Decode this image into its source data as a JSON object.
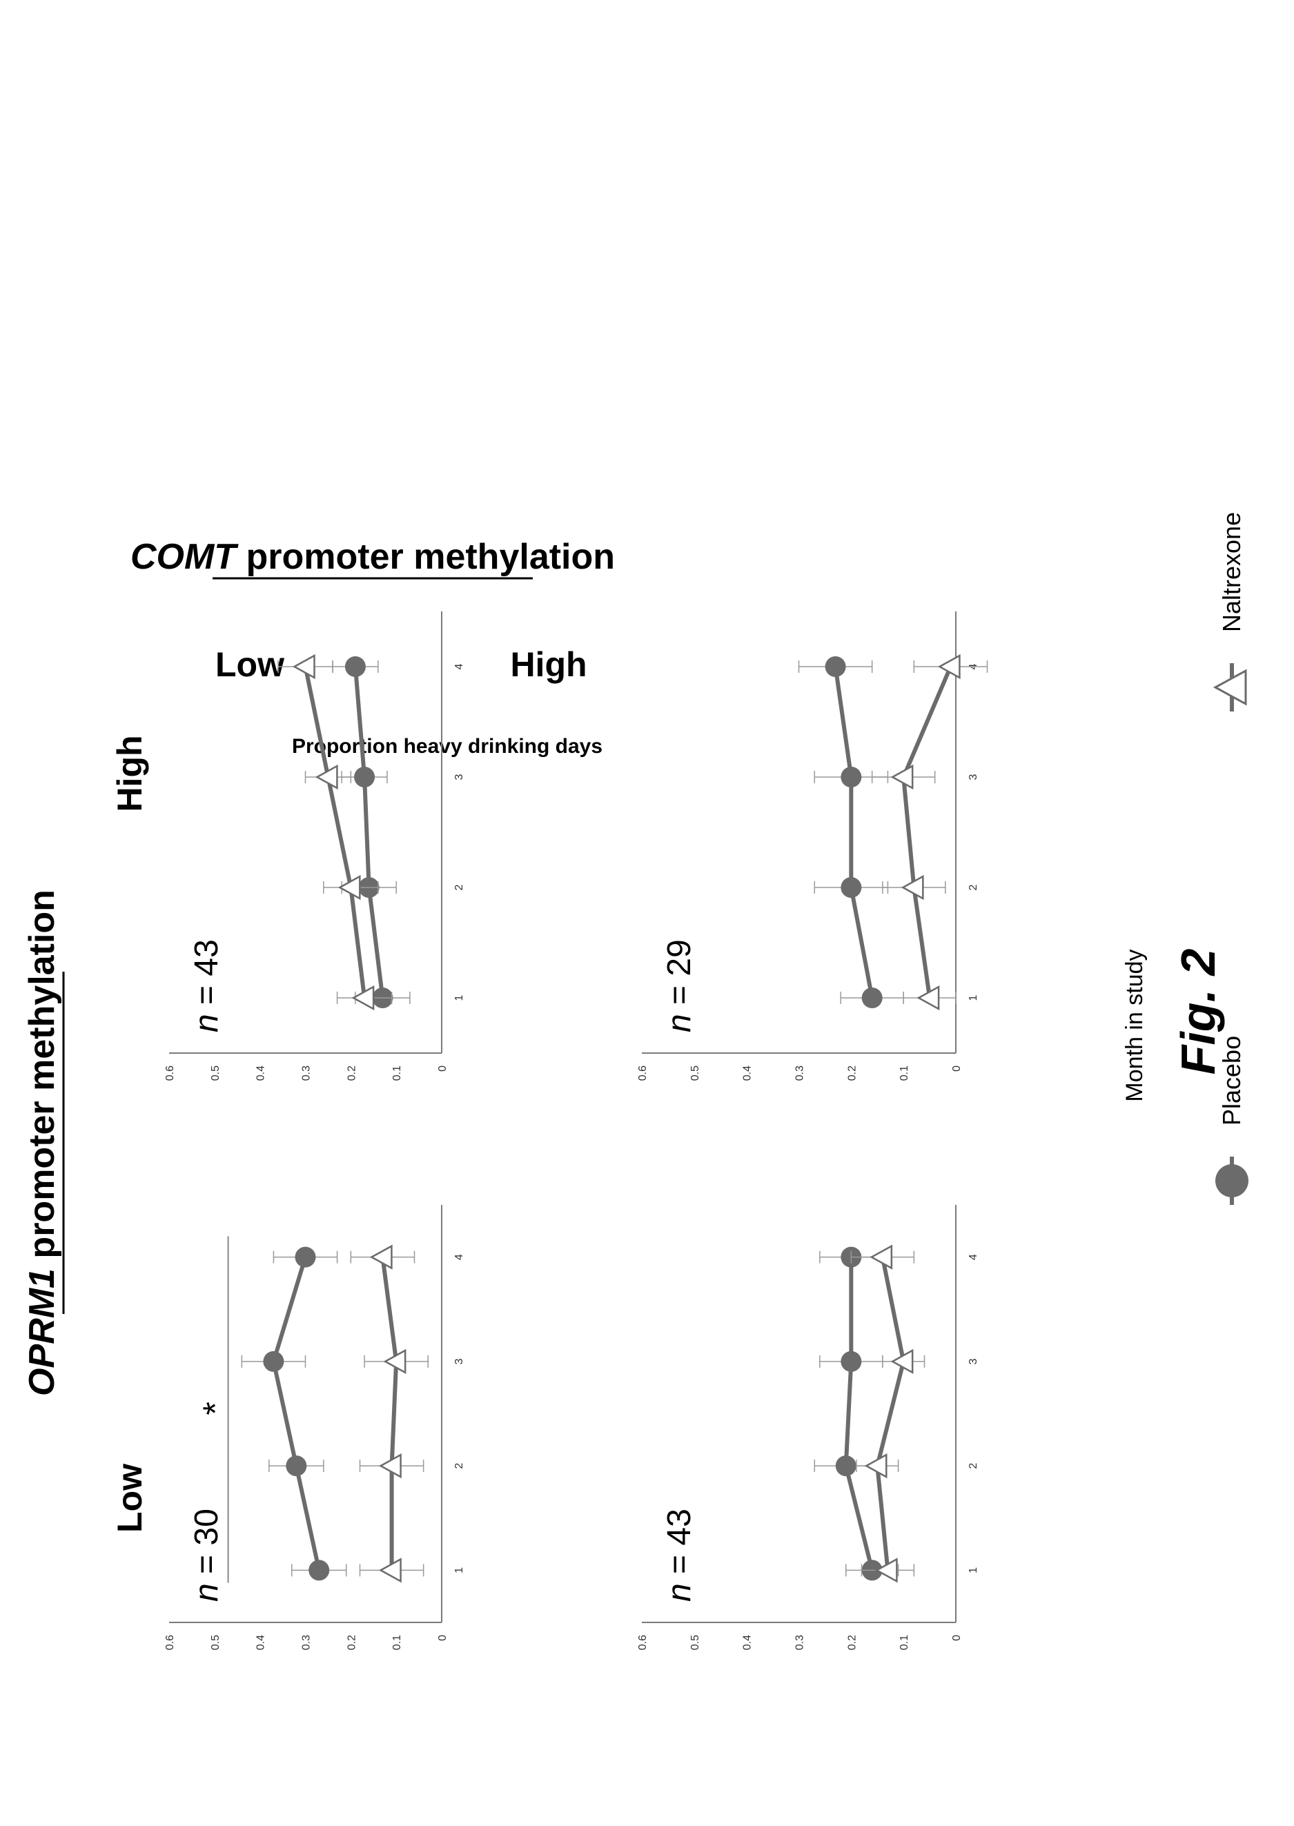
{
  "figure": {
    "fig_label": "Fig. 2",
    "top_title": {
      "italic": "OPRM1",
      "rest": " promoter methylation"
    },
    "left_title": {
      "italic": "COMT",
      "rest": " promoter methylation"
    },
    "col_titles": [
      "Low",
      "High"
    ],
    "row_titles": [
      "Low",
      "High"
    ],
    "ylabel": "Proportion heavy drinking days",
    "xlabel": "Month in study",
    "legend": [
      {
        "label": "Placebo",
        "marker": "filled-circle",
        "color": "#6b6b6b"
      },
      {
        "label": "Naltrexone",
        "marker": "open-triangle",
        "color": "#6b6b6b"
      }
    ],
    "significance_marker": "*"
  },
  "chart_data": [
    {
      "type": "line",
      "panel": "COMT low / OPRM1 low",
      "n_label": "n = 30",
      "x": [
        1,
        2,
        3,
        4
      ],
      "ylim": [
        0,
        0.6
      ],
      "yticks": [
        "0",
        "0.1",
        "0.2",
        "0.3",
        "0.4",
        "0.5",
        "0.6"
      ],
      "series": [
        {
          "name": "Placebo",
          "values": [
            0.27,
            0.32,
            0.37,
            0.3
          ],
          "err": [
            0.06,
            0.06,
            0.07,
            0.07
          ]
        },
        {
          "name": "Naltrexone",
          "values": [
            0.11,
            0.11,
            0.1,
            0.13
          ],
          "err": [
            0.07,
            0.07,
            0.07,
            0.07
          ]
        }
      ],
      "significance": true
    },
    {
      "type": "line",
      "panel": "COMT low / OPRM1 high",
      "n_label": "n = 43",
      "x": [
        1,
        2,
        3,
        4
      ],
      "ylim": [
        0,
        0.6
      ],
      "yticks": [
        "0",
        "0.1",
        "0.2",
        "0.3",
        "0.4",
        "0.5",
        "0.6"
      ],
      "series": [
        {
          "name": "Placebo",
          "values": [
            0.13,
            0.16,
            0.17,
            0.19
          ],
          "err": [
            0.06,
            0.06,
            0.05,
            0.05
          ]
        },
        {
          "name": "Naltrexone",
          "values": [
            0.17,
            0.2,
            0.25,
            0.3
          ],
          "err": [
            0.06,
            0.06,
            0.05,
            0.06
          ]
        }
      ],
      "significance": false
    },
    {
      "type": "line",
      "panel": "COMT high / OPRM1 low",
      "n_label": "n = 43",
      "x": [
        1,
        2,
        3,
        4
      ],
      "ylim": [
        0,
        0.6
      ],
      "yticks": [
        "0",
        "0.1",
        "0.2",
        "0.3",
        "0.4",
        "0.5",
        "0.6"
      ],
      "series": [
        {
          "name": "Placebo",
          "values": [
            0.16,
            0.21,
            0.2,
            0.2
          ],
          "err": [
            0.05,
            0.06,
            0.06,
            0.06
          ]
        },
        {
          "name": "Naltrexone",
          "values": [
            0.13,
            0.15,
            0.1,
            0.14
          ],
          "err": [
            0.05,
            0.04,
            0.04,
            0.06
          ]
        }
      ],
      "significance": false
    },
    {
      "type": "line",
      "panel": "COMT high / OPRM1 high",
      "n_label": "n = 29",
      "x": [
        1,
        2,
        3,
        4
      ],
      "ylim": [
        0,
        0.6
      ],
      "yticks": [
        "0",
        "0.1",
        "0.2",
        "0.3",
        "0.4",
        "0.5",
        "0.6"
      ],
      "series": [
        {
          "name": "Placebo",
          "values": [
            0.16,
            0.2,
            0.2,
            0.23
          ],
          "err": [
            0.06,
            0.07,
            0.07,
            0.07
          ]
        },
        {
          "name": "Naltrexone",
          "values": [
            0.05,
            0.08,
            0.1,
            0.01
          ],
          "err": [
            0.05,
            0.06,
            0.06,
            0.07
          ]
        }
      ],
      "significance": false
    }
  ]
}
